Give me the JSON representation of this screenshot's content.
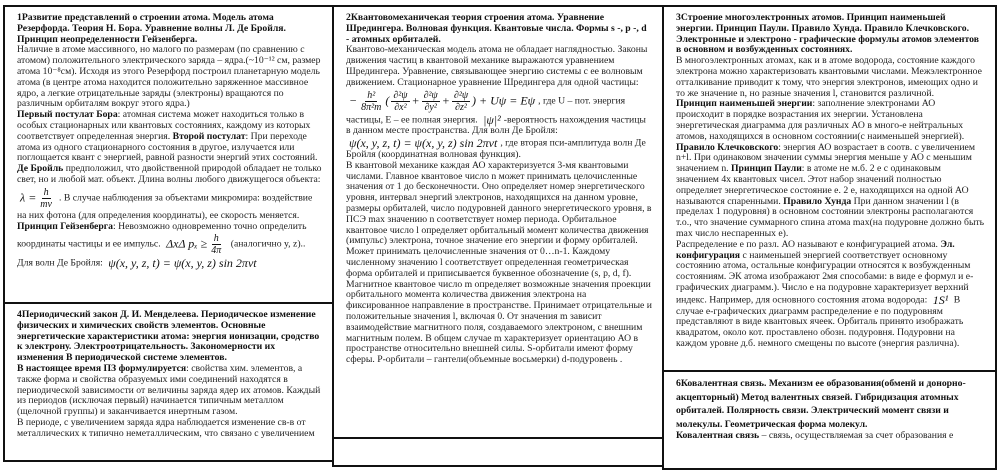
{
  "sections": [
    {
      "id": "s1",
      "title": "1Развитие представлений о строении атома. Модель атома Резерфорда. Теория Н. Бора. Уравнение волны Л. Де Бройля. Принцип неопределенности Гейзенберга.",
      "paragraphs": [
        [
          {
            "t": "Наличие в атоме массивного, но малого по размерам (по сравнению с атомом) положительного электрического заряда – ядра.(~10⁻¹² см, размер атома 10⁻⁸см). Исходя из этого Резерфорд построил планетарную модель атома (в центре атома находится положительно заряженное массивное ядро, а легкие отрицательные заряды (электроны) вращаются по различным орбиталям вокруг этого ядра.)"
          }
        ],
        [
          {
            "b": "Первый постулат Бора"
          },
          {
            "t": ": атомная система может находиться только в особых стационарных или квантовых состояниях, каждому из которых соответствует определенная энергия. "
          },
          {
            "b": "Второй постулат"
          },
          {
            "t": ": При переходе атома из одного стационарного состояния в другое, излучается или поглощается квант с энергией, равной разности энергий этих состояний."
          }
        ],
        [
          {
            "b": "Де Бройль"
          },
          {
            "t": " предположил, что двойственной природой обладает не только свет, но и любой мат. объект. Длина волны любого движущегося объекта: "
          },
          {
            "f": [
              "λ =",
              {
                "num": "h",
                "den": "mv"
              }
            ]
          },
          {
            "t": ". В случае наблюдения за объектами микромира: воздействие на них фотона (для определения координаты), ее скорость меняется."
          }
        ],
        [
          {
            "b": "Принцип Гейзенберга"
          },
          {
            "t": ": Невозможно одновременно точно определить координаты частицы и ее импульс. "
          },
          {
            "f": [
              "ΔxΔ pₓ ≥",
              {
                "num": "h",
                "den": "4π"
              }
            ]
          },
          {
            "t": " (аналогично y, z).. Для волн Де Бройля: "
          },
          {
            "f": [
              "ψ(x, y, z, t) = ψ(x, y, z) sin 2πνt"
            ]
          }
        ]
      ]
    },
    {
      "id": "s4",
      "title": "4Периодический закон Д. И. Менделеева. Периодическое изменение физических и химических свойств элементов. Основные энергетические характеристики атома: энергия ионизации, сродство к электрону. Электроотрицательность. Закономерности их изменения В периодической системе элементов.",
      "paragraphs": [
        [
          {
            "b": "В настоящее время ПЗ формулируется"
          },
          {
            "t": ": свойства хим. элементов, а также форма и свойства образуемых ими соединений находятся в периодической зависимости от величины заряда ядер их атомов. Каждый из периодов (исключая первый) начинается типичным металлом (щелочной группы) и заканчивается инертным газом."
          }
        ],
        [
          {
            "t": "В периоде, с увеличением заряда ядра наблюдается изменение св-в от металлических к типично неметаллическим, что связано с увеличением"
          }
        ]
      ]
    },
    {
      "id": "s2",
      "title": "2Квантовомеханичекая теория строения атома. Уравнение Шредингера. Волновая функция. Квантовые числа. Формы s -, p -, d - атомных орбиталей.",
      "paragraphs": [
        [
          {
            "t": "Квантово-механическая модель атома не обладает наглядностью. Законы движения частиц в квантовой механике выражаются уравнением Шредингера. Уравнение, связывающее энергию системы с ее волновым движением. Стационарное уравнение Шредингера для одной частицы: "
          },
          {
            "f": [
              "−",
              {
                "num": "h²",
                "den": "8π²m"
              },
              "(",
              {
                "num": "∂²ψ",
                "den": "∂x²"
              },
              "+",
              {
                "num": "∂²ψ",
                "den": "∂y²"
              },
              "+",
              {
                "num": "∂²ψ",
                "den": "∂z²"
              },
              ") + Uψ = Eψ"
            ]
          },
          {
            "t": ", где U – пот. энергия частицы, E – ее полная энергия. "
          },
          {
            "f": [
              "|ψ|²"
            ]
          },
          {
            "t": "-вероятность нахождения частицы в данном месте пространства. Для волн Де Бройля: "
          },
          {
            "f": [
              "ψ(x, y, z, t) = ψ(x, y, z) sin 2πνt"
            ]
          },
          {
            "t": ", где вторая пси-амплитуда волн Де Бройля (координатная волновая функция)."
          }
        ],
        [
          {
            "t": "В квантовой механике каждая АО характеризуется 3-мя квантовыми числами. Главное квантовое число n может принимать целочисленные значения от 1 до бесконечности. Оно определяет номер энергетического уровня, интервал энергий электронов, находящихся на данном уровне, размеры орбиталей, число подуровней данного энергетического уровня, в ПСЭ max значению n соответствует номер периода. Орбитальное квантовое число l определяет орбитальный момент количества движения (импульс) электрона, точное значение его энергии  и форму орбиталей. Может принимать целочисленные значения от 0…n-1. Каждому численному значению l соответствует определенная геометрическая форма орбиталей и приписывается буквенное обозначение (s, p, d, f). Магнитное квантовое число m определяет возможные значения проекции орбитального момента количества движения электрона на фиксированное направление в пространстве. Принимает отрицательные и положительные значения l, включая 0. От значения m зависит взаимодействие магнитного поля, создаваемого электроном, с внешним магнитным полем. В общем случае m характеризует ориентацию АО в пространстве относительно внешней силы. S-орбитали имеют форму сферы. P-орбитали – гантели(объемные восьмерки) d-подуровень ."
          }
        ]
      ]
    },
    {
      "id": "s5",
      "title": "",
      "paragraphs": []
    },
    {
      "id": "s3",
      "title": "3Строение многоэлектронных атомов. Принцип наименьшей энергии. Принцип Паули. Правило Хунда. Правило Клечковского. Электронные и электроно - графические формулы атомов элементов в основном и возбужденных состояниях.",
      "paragraphs": [
        [
          {
            "t": "В многоэлектронных атомах, как и в атоме водорода, состояние каждого электрона можно характеризовать квантовыми числами. Межэлектронное отталкивание приводит к тому, что энергия электронов, имеющих одно и то же значение n, но разные значения l, становится различной."
          }
        ],
        [
          {
            "b": "Принцип наименьшей энергии"
          },
          {
            "t": ": заполнение электронами АО происходит в порядке возрастания их энергии. Установлена энергетическая диаграмма для различных АО в много-е нейтральных атомов, находящихся в основном состоянии(с наименьшей энергией). "
          },
          {
            "b": "Правило Клечковского"
          },
          {
            "t": ": энергия АО возрастает в соотв. с увеличением n+l. При одинаковом значении суммы энергия меньше у АО с меньшим значением n. "
          },
          {
            "b": "Принцип Паули"
          },
          {
            "t": ": в атоме не м.б. 2 e с одинаковым значением 4х квантовых чисел. Этот набор значений полностью определяет энергетическое состояние e. 2 e, находящихся на одной АО называются спаренными. "
          },
          {
            "b": "Правило Хунда"
          },
          {
            "t": " При данном значении l (в пределах 1 подуровня) в основном состоянии электроны располагаются т.о., что значение суммарного спина атома max(на подуровне должно быть max число неспаренных e)."
          }
        ],
        [
          {
            "t": "Распределение e по разл. АО называют e конфигурацией атома. "
          },
          {
            "b": "Эл. конфигурация"
          },
          {
            "t": " с наименьшей энергией соответствует основному состоянию атома, остальные конфигурации относятся к возбужденным состояниям. ЭК атома изображают 2мя способами: в виде e формул и e-графических диаграмм.). Число e на подуровне характеризует верхний индекс. Например, для основного состояния атома водорода: "
          },
          {
            "f": [
              "1S¹"
            ]
          },
          {
            "t": " В случае e-графических диаграмм распределение e по подуровням представляют в виде квантовых ячеек. Орбиталь принято изображать квадратом, около кот. проставлено обозн. подуровня. Подуровни на каждом уровне д.б. немного смещены по высоте (энергия различна)."
          }
        ]
      ]
    },
    {
      "id": "s6",
      "title": "6Ковалентная связь. Механизм ее образования(обменй и донорно-акцепторный) Метод валентных связей. Гибридизация атомных орбиталей. Полярность связи. Электрический момент связи и молекулы. Геометрическая форма молекул.",
      "paragraphs": [
        [
          {
            "b": "Ковалентная связь"
          },
          {
            "t": " – связь, осуществляемая за счет образования e"
          }
        ]
      ]
    }
  ]
}
